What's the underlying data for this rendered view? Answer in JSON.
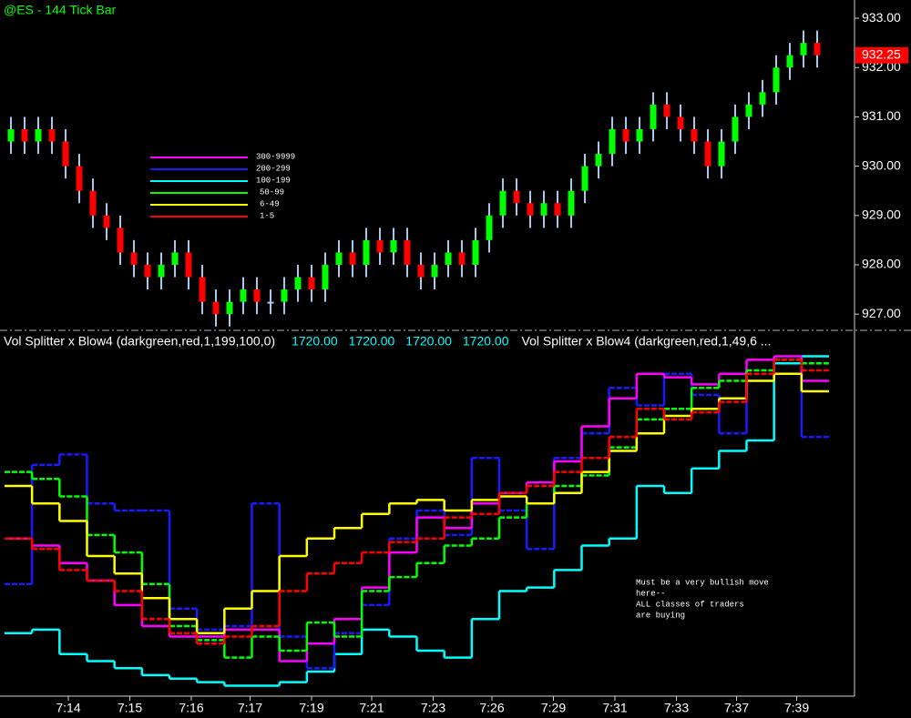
{
  "chart_data": [
    {
      "type": "candlestick",
      "title": "@ES - 144 Tick Bar",
      "open": [
        930.5,
        930.75,
        930.5,
        930.75,
        930.5,
        930.0,
        929.5,
        929.0,
        928.75,
        928.25,
        928.0,
        927.75,
        928.0,
        928.25,
        927.75,
        927.25,
        927.0,
        927.25,
        927.5,
        927.25,
        927.25,
        927.5,
        927.75,
        927.5,
        928.0,
        928.25,
        928.0,
        928.5,
        928.25,
        928.5,
        928.0,
        927.75,
        928.0,
        928.25,
        928.0,
        928.5,
        929.0,
        929.5,
        929.25,
        929.0,
        929.25,
        929.0,
        929.5,
        930.0,
        930.25,
        930.75,
        930.5,
        930.75,
        931.25,
        931.0,
        930.75,
        930.5,
        930.0,
        930.5,
        931.0,
        931.25,
        931.5,
        932.0,
        932.25,
        932.5
      ],
      "high": [
        931.0,
        931.0,
        931.0,
        931.0,
        930.75,
        930.25,
        929.75,
        929.25,
        929.0,
        928.5,
        928.25,
        928.25,
        928.5,
        928.5,
        928.0,
        927.5,
        927.5,
        927.75,
        927.75,
        927.5,
        927.75,
        928.0,
        928.0,
        928.25,
        928.5,
        928.5,
        928.75,
        928.75,
        928.75,
        928.75,
        928.25,
        928.25,
        928.5,
        928.5,
        928.75,
        929.25,
        929.75,
        929.75,
        929.5,
        929.5,
        929.5,
        929.75,
        930.25,
        930.5,
        931.0,
        931.0,
        931.0,
        931.5,
        931.5,
        931.25,
        931.0,
        930.75,
        930.75,
        931.25,
        931.5,
        931.75,
        932.25,
        932.5,
        932.75,
        932.75
      ],
      "low": [
        930.25,
        930.25,
        930.25,
        930.25,
        929.75,
        929.25,
        928.75,
        928.5,
        928.0,
        927.75,
        927.5,
        927.5,
        927.75,
        927.5,
        927.0,
        926.75,
        926.75,
        927.0,
        927.0,
        927.0,
        927.0,
        927.25,
        927.25,
        927.25,
        927.75,
        927.75,
        927.75,
        928.0,
        928.0,
        927.75,
        927.5,
        927.5,
        927.75,
        927.75,
        927.75,
        928.25,
        928.75,
        929.0,
        928.75,
        928.75,
        928.75,
        928.75,
        929.25,
        929.75,
        930.0,
        930.25,
        930.25,
        930.5,
        930.75,
        930.5,
        930.25,
        929.75,
        929.75,
        930.25,
        930.75,
        931.0,
        931.25,
        931.75,
        932.0,
        932.0
      ],
      "close": [
        930.75,
        930.5,
        930.75,
        930.5,
        930.0,
        929.5,
        929.0,
        928.75,
        928.25,
        928.0,
        927.75,
        928.0,
        928.25,
        927.75,
        927.25,
        927.0,
        927.25,
        927.5,
        927.25,
        927.25,
        927.5,
        927.75,
        927.5,
        928.0,
        928.25,
        928.0,
        928.5,
        928.25,
        928.5,
        928.0,
        927.75,
        928.0,
        928.25,
        928.0,
        928.5,
        929.0,
        929.5,
        929.25,
        929.0,
        929.25,
        929.0,
        929.5,
        930.0,
        930.25,
        930.75,
        930.5,
        930.75,
        931.25,
        931.0,
        930.75,
        930.5,
        930.0,
        930.5,
        931.0,
        931.25,
        931.5,
        932.0,
        932.25,
        932.5,
        932.25
      ],
      "up_color": "#00ff00",
      "down_color": "#ff0000",
      "doji_color": "#a8c8f0",
      "last_price": 932.25,
      "last_price_color": "#ff0000",
      "ylim": [
        926.69,
        933.37
      ],
      "yticks": [
        {
          "value": 927,
          "label": "927.00"
        },
        {
          "value": 928,
          "label": "928.00"
        },
        {
          "value": 929,
          "label": "929.00"
        },
        {
          "value": 930,
          "label": "930.00"
        },
        {
          "value": 931,
          "label": "931.00"
        },
        {
          "value": 932,
          "label": "932.00"
        },
        {
          "value": 933,
          "label": "933.00"
        }
      ],
      "xticks": [
        {
          "value": 4.2,
          "label": "7:14"
        },
        {
          "value": 8.7,
          "label": "7:15"
        },
        {
          "value": 13.2,
          "label": "7:16"
        },
        {
          "value": 17.5,
          "label": "7:17"
        },
        {
          "value": 22,
          "label": "7:19"
        },
        {
          "value": 26.4,
          "label": "7:21"
        },
        {
          "value": 30.9,
          "label": "7:23"
        },
        {
          "value": 35.2,
          "label": "7:26"
        },
        {
          "value": 39.7,
          "label": "7:29"
        },
        {
          "value": 44.2,
          "label": "7:31"
        },
        {
          "value": 48.7,
          "label": "7:33"
        },
        {
          "value": 53.1,
          "label": "7:37"
        },
        {
          "value": 57.5,
          "label": "7:39"
        }
      ]
    },
    {
      "type": "step",
      "title": "Vol Splitter x Blow4 (darkgreen,red,1,199,100,0)",
      "readouts": [
        "1720.00",
        "1720.00",
        "1720.00",
        "1720.00"
      ],
      "title2": "Vol Splitter x Blow4 (darkgreen,red,1,49,6 ...",
      "annotation": [
        "Must be a very bullish move",
        "here--",
        "ALL classes of traders",
        "are buying"
      ],
      "ylim": [
        0,
        100
      ],
      "series": [
        {
          "name": "100-199",
          "color": "#00ffff",
          "values": [
            18,
            19,
            12,
            10,
            8,
            6,
            5,
            4,
            3,
            3,
            4,
            7,
            12,
            19,
            17,
            13,
            11,
            22,
            30,
            31,
            36,
            43,
            45,
            60,
            58,
            65,
            70,
            73,
            95,
            97
          ]
        },
        {
          "name": "200-299",
          "color": "#1a1aff",
          "values": [
            32,
            66,
            69,
            55,
            53,
            53,
            25,
            19,
            20,
            55,
            17,
            8,
            18,
            26,
            45,
            53,
            46,
            68,
            53,
            42,
            68,
            75,
            88,
            83,
            92,
            86,
            75,
            93,
            96,
            74
          ]
        },
        {
          "name": "300-9999",
          "color": "#ff00ff",
          "values": [
            45,
            43,
            38,
            33,
            26,
            20,
            17,
            17,
            19,
            19,
            10,
            15,
            22,
            31,
            41,
            51,
            48,
            55,
            58,
            61,
            67,
            77,
            85,
            92,
            91,
            89,
            92,
            96,
            97,
            90
          ]
        },
        {
          "name": "50-99",
          "color": "#00ff00",
          "values": [
            64,
            62,
            57,
            46,
            41,
            32,
            20,
            16,
            11,
            17,
            13,
            21,
            17,
            30,
            34,
            38,
            43,
            45,
            51,
            55,
            60,
            63,
            71,
            79,
            82,
            88,
            90,
            93,
            96,
            95
          ]
        },
        {
          "name": "6-49",
          "color": "#ffff00",
          "values": [
            60,
            55,
            50,
            40,
            35,
            28,
            22,
            18,
            25,
            30,
            40,
            45,
            48,
            52,
            55,
            56,
            53,
            56,
            57,
            55,
            58,
            64,
            70,
            75,
            80,
            82,
            85,
            90,
            92,
            87
          ]
        },
        {
          "name": "1-5",
          "color": "#ff0000",
          "values": [
            45,
            42,
            36,
            33,
            30,
            22,
            18,
            15,
            17,
            20,
            30,
            35,
            38,
            41,
            44,
            45,
            51,
            52,
            58,
            60,
            64,
            68,
            74,
            82,
            79,
            81,
            84,
            92,
            96,
            93
          ]
        }
      ],
      "legend_order": [
        2,
        1,
        0,
        3,
        4,
        5
      ]
    }
  ]
}
